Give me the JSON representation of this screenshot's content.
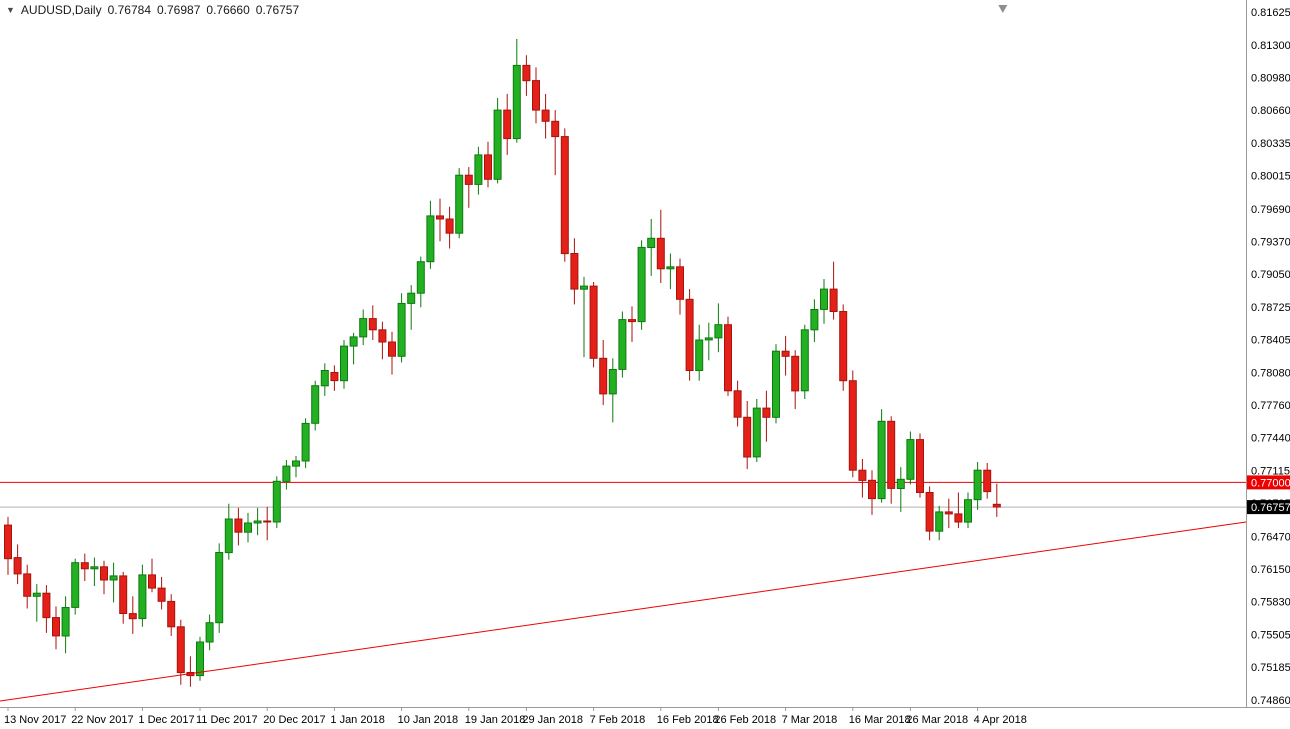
{
  "header": {
    "dropdown_icon": "▼",
    "symbol_period": "AUDUSD,Daily",
    "open": "0.76784",
    "high": "0.76987",
    "low": "0.76660",
    "close": "0.76757"
  },
  "chart_data": {
    "type": "candlestick",
    "symbol": "AUDUSD",
    "timeframe": "Daily",
    "price_axis": {
      "min": 0.7486,
      "max": 0.81625,
      "labels": [
        "0.81625",
        "0.81300",
        "0.80980",
        "0.80660",
        "0.80335",
        "0.80015",
        "0.79690",
        "0.79370",
        "0.79050",
        "0.78725",
        "0.78405",
        "0.78080",
        "0.77760",
        "0.77440",
        "0.77115",
        "0.76795",
        "0.76470",
        "0.76150",
        "0.75830",
        "0.75505",
        "0.75185",
        "0.74860"
      ]
    },
    "time_axis": {
      "labels": [
        {
          "index": 0,
          "text": "13 Nov 2017"
        },
        {
          "index": 7,
          "text": "22 Nov 2017"
        },
        {
          "index": 14,
          "text": "1 Dec 2017"
        },
        {
          "index": 20,
          "text": "11 Dec 2017"
        },
        {
          "index": 27,
          "text": "20 Dec 2017"
        },
        {
          "index": 34,
          "text": "1 Jan 2018"
        },
        {
          "index": 41,
          "text": "10 Jan 2018"
        },
        {
          "index": 48,
          "text": "19 Jan 2018"
        },
        {
          "index": 54,
          "text": "29 Jan 2018"
        },
        {
          "index": 61,
          "text": "7 Feb 2018"
        },
        {
          "index": 68,
          "text": "16 Feb 2018"
        },
        {
          "index": 74,
          "text": "26 Feb 2018"
        },
        {
          "index": 81,
          "text": "7 Mar 2018"
        },
        {
          "index": 88,
          "text": "16 Mar 2018"
        },
        {
          "index": 94,
          "text": "26 Mar 2018"
        },
        {
          "index": 101,
          "text": "4 Apr 2018"
        }
      ]
    },
    "candles": [
      [
        0.7658,
        0.7666,
        0.7609,
        0.7625
      ],
      [
        0.7626,
        0.7639,
        0.76,
        0.761
      ],
      [
        0.761,
        0.7619,
        0.7576,
        0.7588
      ],
      [
        0.7588,
        0.76,
        0.7563,
        0.7591
      ],
      [
        0.7591,
        0.7599,
        0.7552,
        0.7567
      ],
      [
        0.7567,
        0.7578,
        0.7536,
        0.7549
      ],
      [
        0.7549,
        0.7588,
        0.7532,
        0.7577
      ],
      [
        0.7577,
        0.7625,
        0.757,
        0.7621
      ],
      [
        0.7621,
        0.763,
        0.7603,
        0.7615
      ],
      [
        0.7615,
        0.7626,
        0.7598,
        0.7617
      ],
      [
        0.7617,
        0.7623,
        0.759,
        0.7604
      ],
      [
        0.7604,
        0.7621,
        0.7582,
        0.7608
      ],
      [
        0.7608,
        0.7612,
        0.7561,
        0.7571
      ],
      [
        0.7571,
        0.7588,
        0.7551,
        0.7566
      ],
      [
        0.7566,
        0.7619,
        0.7558,
        0.7609
      ],
      [
        0.7609,
        0.7625,
        0.7592,
        0.7596
      ],
      [
        0.7596,
        0.7607,
        0.7575,
        0.7583
      ],
      [
        0.7583,
        0.759,
        0.7549,
        0.7558
      ],
      [
        0.7558,
        0.7565,
        0.7501,
        0.7513
      ],
      [
        0.7513,
        0.7529,
        0.7499,
        0.751
      ],
      [
        0.751,
        0.7548,
        0.7505,
        0.7543
      ],
      [
        0.7543,
        0.757,
        0.7535,
        0.7562
      ],
      [
        0.7562,
        0.764,
        0.7552,
        0.7631
      ],
      [
        0.7631,
        0.7679,
        0.7624,
        0.7664
      ],
      [
        0.7664,
        0.7675,
        0.7638,
        0.7651
      ],
      [
        0.7651,
        0.767,
        0.7641,
        0.766
      ],
      [
        0.766,
        0.7675,
        0.7648,
        0.7662
      ],
      [
        0.7662,
        0.7676,
        0.7643,
        0.7661
      ],
      [
        0.7661,
        0.7706,
        0.7655,
        0.7701
      ],
      [
        0.7701,
        0.7722,
        0.7693,
        0.7716
      ],
      [
        0.7716,
        0.7726,
        0.7705,
        0.7721
      ],
      [
        0.7721,
        0.7763,
        0.7714,
        0.7758
      ],
      [
        0.7758,
        0.78,
        0.7751,
        0.7795
      ],
      [
        0.7795,
        0.7817,
        0.7785,
        0.781
      ],
      [
        0.7808,
        0.7815,
        0.779,
        0.78
      ],
      [
        0.78,
        0.784,
        0.7792,
        0.7834
      ],
      [
        0.7834,
        0.7847,
        0.7816,
        0.7843
      ],
      [
        0.7843,
        0.787,
        0.7835,
        0.7861
      ],
      [
        0.7861,
        0.7874,
        0.784,
        0.785
      ],
      [
        0.785,
        0.7858,
        0.7821,
        0.7838
      ],
      [
        0.7838,
        0.7848,
        0.7806,
        0.7824
      ],
      [
        0.7824,
        0.7886,
        0.7818,
        0.7876
      ],
      [
        0.7876,
        0.7894,
        0.785,
        0.7886
      ],
      [
        0.7886,
        0.7922,
        0.7872,
        0.7917
      ],
      [
        0.7917,
        0.7977,
        0.791,
        0.7962
      ],
      [
        0.7962,
        0.7979,
        0.7937,
        0.7959
      ],
      [
        0.7959,
        0.7971,
        0.793,
        0.7945
      ],
      [
        0.7945,
        0.8009,
        0.794,
        0.8002
      ],
      [
        0.8002,
        0.801,
        0.797,
        0.7993
      ],
      [
        0.7993,
        0.803,
        0.7983,
        0.8022
      ],
      [
        0.8022,
        0.8035,
        0.799,
        0.7998
      ],
      [
        0.7998,
        0.8078,
        0.7994,
        0.8066
      ],
      [
        0.8066,
        0.8082,
        0.8022,
        0.8038
      ],
      [
        0.8038,
        0.8136,
        0.8034,
        0.811
      ],
      [
        0.811,
        0.812,
        0.808,
        0.8095
      ],
      [
        0.8095,
        0.8108,
        0.8053,
        0.8066
      ],
      [
        0.8066,
        0.8082,
        0.8038,
        0.8055
      ],
      [
        0.8055,
        0.8066,
        0.8002,
        0.804
      ],
      [
        0.804,
        0.8048,
        0.7917,
        0.7925
      ],
      [
        0.7925,
        0.794,
        0.7875,
        0.789
      ],
      [
        0.789,
        0.7902,
        0.7823,
        0.7893
      ],
      [
        0.7893,
        0.7897,
        0.7813,
        0.7822
      ],
      [
        0.7822,
        0.784,
        0.7776,
        0.7787
      ],
      [
        0.7787,
        0.7822,
        0.7759,
        0.7811
      ],
      [
        0.7811,
        0.7868,
        0.7803,
        0.786
      ],
      [
        0.786,
        0.7873,
        0.7838,
        0.7858
      ],
      [
        0.7858,
        0.7938,
        0.785,
        0.7931
      ],
      [
        0.7931,
        0.7959,
        0.7903,
        0.794
      ],
      [
        0.794,
        0.7968,
        0.7896,
        0.791
      ],
      [
        0.791,
        0.7925,
        0.789,
        0.7912
      ],
      [
        0.7912,
        0.792,
        0.7865,
        0.788
      ],
      [
        0.788,
        0.789,
        0.78,
        0.781
      ],
      [
        0.781,
        0.7855,
        0.78,
        0.784
      ],
      [
        0.784,
        0.7857,
        0.782,
        0.7842
      ],
      [
        0.7842,
        0.7876,
        0.7828,
        0.7855
      ],
      [
        0.7855,
        0.7863,
        0.7785,
        0.779
      ],
      [
        0.779,
        0.78,
        0.7755,
        0.7764
      ],
      [
        0.7764,
        0.778,
        0.7713,
        0.7725
      ],
      [
        0.7725,
        0.7782,
        0.772,
        0.7773
      ],
      [
        0.7773,
        0.779,
        0.774,
        0.7764
      ],
      [
        0.7764,
        0.7836,
        0.7758,
        0.7829
      ],
      [
        0.7829,
        0.7844,
        0.7805,
        0.7824
      ],
      [
        0.7824,
        0.783,
        0.7772,
        0.779
      ],
      [
        0.779,
        0.7855,
        0.7782,
        0.785
      ],
      [
        0.785,
        0.788,
        0.7838,
        0.787
      ],
      [
        0.787,
        0.79,
        0.7856,
        0.789
      ],
      [
        0.789,
        0.7917,
        0.786,
        0.7868
      ],
      [
        0.7868,
        0.7875,
        0.779,
        0.78
      ],
      [
        0.78,
        0.781,
        0.7705,
        0.7712
      ],
      [
        0.7712,
        0.7723,
        0.7685,
        0.7702
      ],
      [
        0.7702,
        0.7712,
        0.7668,
        0.7684
      ],
      [
        0.7684,
        0.7772,
        0.768,
        0.776
      ],
      [
        0.776,
        0.7765,
        0.7679,
        0.7694
      ],
      [
        0.7694,
        0.7715,
        0.7671,
        0.7703
      ],
      [
        0.7703,
        0.775,
        0.7698,
        0.7742
      ],
      [
        0.7742,
        0.7748,
        0.7685,
        0.769
      ],
      [
        0.769,
        0.7696,
        0.7643,
        0.7652
      ],
      [
        0.7652,
        0.7677,
        0.7643,
        0.7671
      ],
      [
        0.7671,
        0.7684,
        0.7655,
        0.7669
      ],
      [
        0.7669,
        0.769,
        0.7655,
        0.7661
      ],
      [
        0.7661,
        0.769,
        0.7655,
        0.7683
      ],
      [
        0.7683,
        0.772,
        0.7673,
        0.7712
      ],
      [
        0.7712,
        0.7719,
        0.7684,
        0.7691
      ],
      [
        0.76784,
        0.76987,
        0.7666,
        0.76757
      ]
    ],
    "objects": {
      "hline": {
        "price": 0.77,
        "label": "0.77000"
      },
      "trendline": {
        "price_left": 0.7485,
        "price_right": 0.7661
      },
      "bid": {
        "price": 0.76757,
        "label": "0.76757"
      }
    },
    "colors": {
      "up_fill": "#23b123",
      "up_edge": "#0c7a0c",
      "down_fill": "#e32119",
      "down_edge": "#a8130d",
      "object_red": "#ee0000",
      "bid_line": "#b2b2b2",
      "bid_tag_bg": "#000000",
      "tag_text": "#ffffff",
      "axis_text": "#000000",
      "border": "#9b9b9b",
      "shift_marker": "#8f8f8f",
      "background": "#ffffff"
    }
  }
}
